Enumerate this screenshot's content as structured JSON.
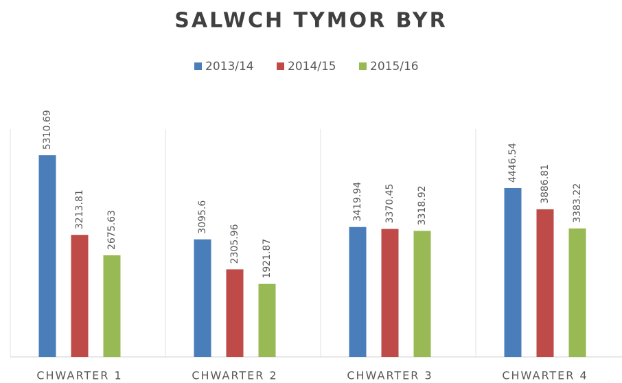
{
  "chart_data": {
    "type": "bar",
    "title": "SALWCH TYMOR BYR",
    "categories": [
      "CHWARTER 1",
      "CHWARTER 2",
      "CHWARTER 3",
      "CHWARTER 4"
    ],
    "series": [
      {
        "name": "2013/14",
        "color": "#4a7ebb",
        "values": [
          5310.69,
          3095.6,
          3419.94,
          4446.54
        ]
      },
      {
        "name": "2014/15",
        "color": "#be4b48",
        "values": [
          3213.81,
          2305.96,
          3370.45,
          3886.81
        ]
      },
      {
        "name": "2015/16",
        "color": "#98b954",
        "values": [
          2675.63,
          1921.87,
          3318.92,
          3383.22
        ]
      }
    ],
    "ylim": [
      0,
      6000
    ],
    "legend": "top"
  }
}
